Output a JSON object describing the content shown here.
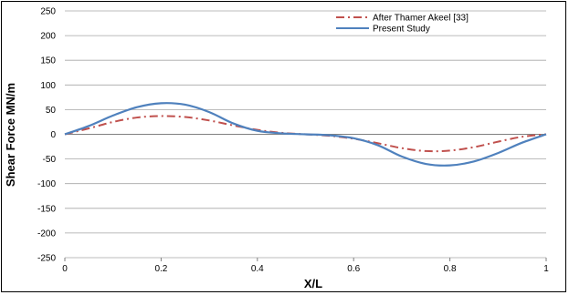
{
  "chart_data": {
    "type": "line",
    "title": "",
    "xlabel": "X/L",
    "ylabel": "Shear Force MN/m",
    "xlim": [
      0,
      1
    ],
    "ylim": [
      -250,
      250
    ],
    "x_ticks": [
      "0",
      "0.2",
      "0.4",
      "0.6",
      "0.8",
      "1"
    ],
    "y_ticks": [
      "250",
      "200",
      "150",
      "100",
      "50",
      "0",
      "-50",
      "-100",
      "-150",
      "-200",
      "-250"
    ],
    "grid": "horizontal",
    "legend_position": "top-right",
    "series": [
      {
        "name": "After Thamer Akeel [33]",
        "color": "#c0504d",
        "style": "dash-dot",
        "x": [
          0,
          0.05,
          0.1,
          0.15,
          0.2,
          0.25,
          0.3,
          0.35,
          0.4,
          0.45,
          0.5,
          0.55,
          0.6,
          0.65,
          0.7,
          0.75,
          0.8,
          0.85,
          0.9,
          0.95,
          1
        ],
        "y": [
          0,
          12,
          25,
          34,
          37,
          35,
          28,
          18,
          9,
          3,
          0,
          -3,
          -9,
          -18,
          -28,
          -34,
          -33,
          -26,
          -15,
          -5,
          0
        ]
      },
      {
        "name": "Present Study",
        "color": "#4f81bd",
        "style": "solid",
        "x": [
          0,
          0.05,
          0.1,
          0.15,
          0.2,
          0.25,
          0.3,
          0.35,
          0.4,
          0.45,
          0.5,
          0.55,
          0.6,
          0.65,
          0.7,
          0.75,
          0.8,
          0.85,
          0.9,
          0.95,
          1
        ],
        "y": [
          0,
          17,
          38,
          55,
          63,
          60,
          45,
          22,
          7,
          2,
          0,
          -2,
          -8,
          -22,
          -45,
          -60,
          -63,
          -55,
          -38,
          -17,
          0
        ]
      }
    ]
  }
}
